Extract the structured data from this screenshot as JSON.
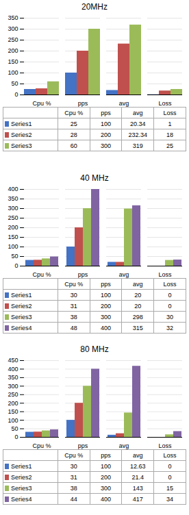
{
  "chart_data": [
    {
      "type": "bar",
      "title": "20MHz",
      "categories": [
        "Cpu %",
        "pps",
        "avg",
        "Loss"
      ],
      "series": [
        {
          "name": "Series1",
          "color": "#4472C4",
          "values": [
            25,
            100,
            20.34,
            1
          ]
        },
        {
          "name": "Series2",
          "color": "#C0504D",
          "values": [
            28,
            200,
            232.34,
            18
          ]
        },
        {
          "name": "Series3",
          "color": "#9BBB59",
          "values": [
            60,
            300,
            319,
            25
          ]
        }
      ],
      "ylim": [
        0,
        350
      ],
      "yticks": [
        0,
        50,
        100,
        150,
        200,
        250,
        300,
        350
      ],
      "grid": true
    },
    {
      "type": "bar",
      "title": "40 MHz",
      "categories": [
        "Cpu %",
        "pps",
        "avg",
        "Loss"
      ],
      "series": [
        {
          "name": "Series1",
          "color": "#4472C4",
          "values": [
            30,
            100,
            20,
            0
          ]
        },
        {
          "name": "Series2",
          "color": "#C0504D",
          "values": [
            31,
            200,
            20,
            0
          ]
        },
        {
          "name": "Series3",
          "color": "#9BBB59",
          "values": [
            38,
            300,
            298,
            30
          ]
        },
        {
          "name": "Series4",
          "color": "#8064A2",
          "values": [
            48,
            400,
            315,
            32
          ]
        }
      ],
      "ylim": [
        0,
        400
      ],
      "yticks": [
        0,
        50,
        100,
        150,
        200,
        250,
        300,
        350,
        400
      ],
      "grid": true
    },
    {
      "type": "bar",
      "title": "80 MHz",
      "categories": [
        "Cpu %",
        "pps",
        "avg",
        "Loss"
      ],
      "series": [
        {
          "name": "Series1",
          "color": "#4472C4",
          "values": [
            30,
            100,
            12.63,
            0
          ]
        },
        {
          "name": "Series2",
          "color": "#C0504D",
          "values": [
            31,
            200,
            21.4,
            0
          ]
        },
        {
          "name": "Series3",
          "color": "#9BBB59",
          "values": [
            38,
            300,
            143,
            15
          ]
        },
        {
          "name": "Series4",
          "color": "#8064A2",
          "values": [
            44,
            400,
            417,
            34
          ]
        }
      ],
      "ylim": [
        0,
        450
      ],
      "yticks": [
        0,
        50,
        100,
        150,
        200,
        250,
        300,
        350,
        400,
        450
      ],
      "grid": true
    }
  ]
}
